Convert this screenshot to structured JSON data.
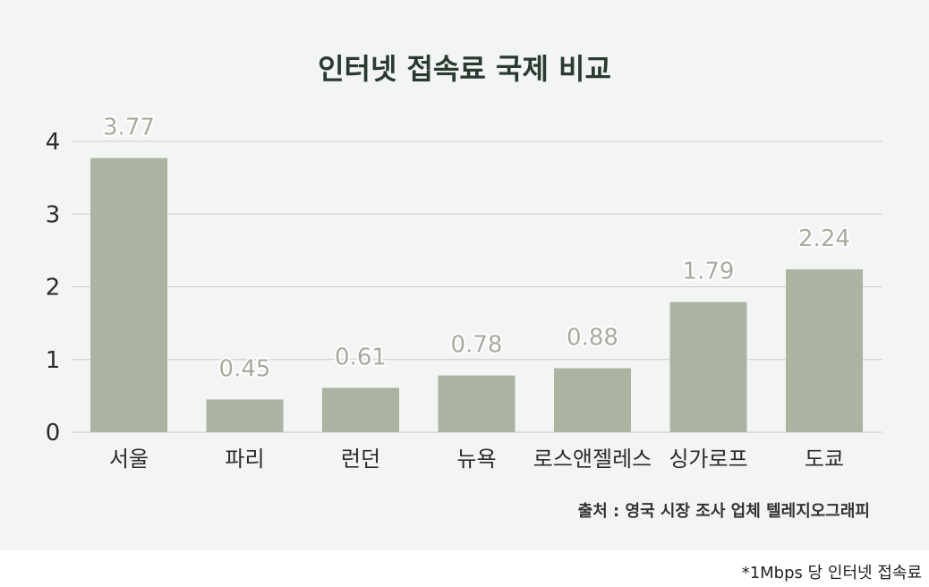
{
  "chart_data": {
    "type": "bar",
    "title": "인터넷 접속료 국제 비교",
    "categories": [
      "서울",
      "파리",
      "런던",
      "뉴욕",
      "로스앤젤레스",
      "싱가로프",
      "도쿄"
    ],
    "values": [
      3.77,
      0.45,
      0.61,
      0.78,
      0.88,
      1.79,
      2.24
    ],
    "value_labels": [
      "3.77",
      "0.45",
      "0.61",
      "0.78",
      "0.88",
      "1.79",
      "2.24"
    ],
    "yticks": [
      "0",
      "1",
      "2",
      "3",
      "4"
    ],
    "ylim": [
      0,
      4
    ],
    "grid": true,
    "legend": "none"
  },
  "footer": {
    "source": "출처 : 영국 시장 조사 업체 텔레지오그래피",
    "unit_note": "*1Mbps 당 인터넷 접속료"
  },
  "colors": {
    "bar": "#abb4a1",
    "panel_bg": "#f3f5f4",
    "grid": "#c9cccb",
    "value_label": "#a8aa9f",
    "value_label_outline": "#ffffff",
    "axis_text": "#2b2b2b",
    "title": "#2a3a30"
  }
}
